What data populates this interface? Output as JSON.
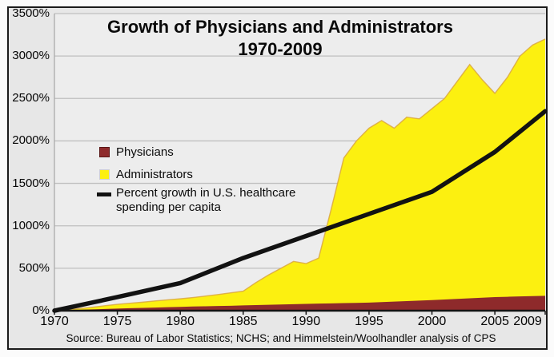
{
  "title": {
    "line1": "Growth of Physicians and Administrators",
    "line2": "1970-2009"
  },
  "legend": {
    "physicians_label": "Physicians",
    "administrators_label": "Administrators",
    "spending_label_line1": "Percent growth in U.S. healthcare",
    "spending_label_line2": "spending per capita"
  },
  "source": "Source: Bureau of Labor Statistics; NCHS; and Himmelstein/Woolhandler analysis of CPS",
  "colors": {
    "administrators": "#FCF010",
    "administrators_edge": "#D9A641",
    "physicians": "#8E2A2B",
    "spending_line": "#121212",
    "gridline": "#bfbfbf",
    "axis_gray": "#aaaaaa",
    "axis_black": "#141414",
    "plot_bg": "#ededed",
    "background": "#e7e7e7"
  },
  "chart_data": {
    "type": "area",
    "title": "Growth of Physicians and Administrators 1970-2009",
    "xlabel": "",
    "ylabel": "",
    "xlim": [
      1970,
      2009
    ],
    "ylim": [
      0,
      3500
    ],
    "grid": true,
    "legend_position": "upper-left-inside",
    "y_ticks": [
      "0%",
      "500%",
      "1000%",
      "1500%",
      "2000%",
      "2500%",
      "3000%",
      "3500%"
    ],
    "x_ticks": [
      {
        "year": 1970,
        "label": "1970"
      },
      {
        "year": 1975,
        "label": "1975"
      },
      {
        "year": 1980,
        "label": "1980"
      },
      {
        "year": 1985,
        "label": "1985"
      },
      {
        "year": 1990,
        "label": "1990"
      },
      {
        "year": 1995,
        "label": "1995"
      },
      {
        "year": 2000,
        "label": "2000"
      },
      {
        "year": 2005,
        "label": "2005"
      },
      {
        "year": 2009,
        "label": "2009"
      }
    ],
    "x": [
      1970,
      1971,
      1972,
      1973,
      1974,
      1975,
      1976,
      1977,
      1978,
      1979,
      1980,
      1981,
      1982,
      1983,
      1984,
      1985,
      1986,
      1987,
      1988,
      1989,
      1990,
      1991,
      1992,
      1993,
      1994,
      1995,
      1996,
      1997,
      1998,
      1999,
      2000,
      2001,
      2002,
      2003,
      2004,
      2005,
      2006,
      2007,
      2008,
      2009
    ],
    "series": [
      {
        "name": "Administrators",
        "type": "area",
        "color": "#FCF010",
        "edge_color": "#D9A641",
        "values": [
          0,
          12,
          25,
          40,
          58,
          75,
          88,
          100,
          115,
          128,
          140,
          155,
          172,
          190,
          210,
          230,
          330,
          420,
          500,
          580,
          555,
          620,
          1200,
          1800,
          2000,
          2150,
          2240,
          2150,
          2280,
          2260,
          2380,
          2500,
          2700,
          2900,
          2720,
          2560,
          2750,
          3000,
          3130,
          3200
        ]
      },
      {
        "name": "Physicians",
        "type": "area",
        "color": "#8E2A2B",
        "values": [
          0,
          5,
          10,
          15,
          20,
          25,
          29,
          33,
          37,
          41,
          45,
          49,
          52,
          55,
          58,
          62,
          66,
          69,
          73,
          76,
          80,
          83,
          86,
          89,
          92,
          95,
          101,
          107,
          113,
          119,
          125,
          132,
          139,
          146,
          153,
          160,
          164,
          168,
          172,
          175
        ]
      },
      {
        "name": "Percent growth in U.S. healthcare spending per capita",
        "type": "line",
        "color": "#121212",
        "x": [
          1970,
          1975,
          1980,
          1985,
          1990,
          1995,
          2000,
          2005,
          2009
        ],
        "values": [
          0,
          160,
          325,
          620,
          880,
          1140,
          1400,
          1870,
          2350
        ]
      }
    ]
  }
}
